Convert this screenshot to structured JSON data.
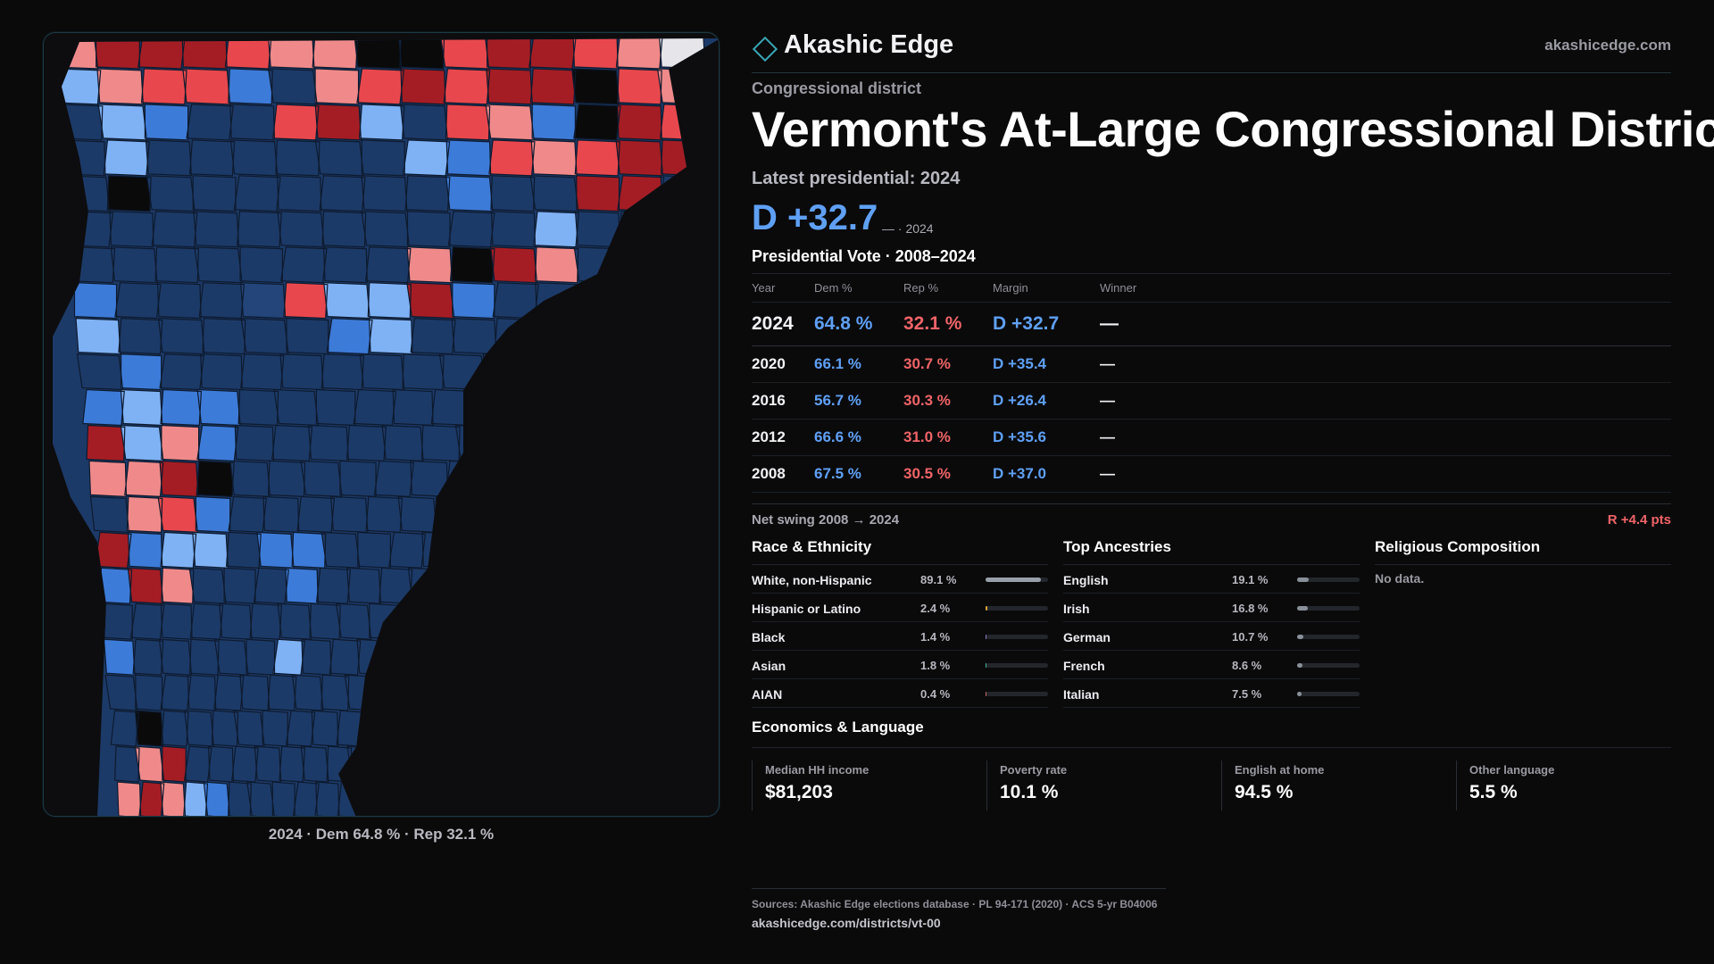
{
  "brand": {
    "name": "Akashic Edge",
    "url": "akashicedge.com"
  },
  "colors": {
    "dem": "#5fa0f5",
    "rep": "#f06468",
    "accent": "#3aa7b5",
    "background": "#0a0a0b"
  },
  "district": {
    "kicker": "Congressional district",
    "title": "Vermont's At-Large Congressional District",
    "latest_label": "Latest presidential: 2024",
    "latest_margin": "D +32.7",
    "latest_margin_sub": "— · 2024"
  },
  "map": {
    "caption": "2024 · Dem 64.8 % · Rep 32.1 %"
  },
  "vote_table": {
    "heading": "Presidential Vote · 2008–2024",
    "columns": [
      "Year",
      "Dem %",
      "Rep %",
      "Margin",
      "Winner"
    ],
    "rows": [
      {
        "year": "2024",
        "dem": "64.8 %",
        "rep": "32.1 %",
        "margin": "D +32.7",
        "winner": "—"
      },
      {
        "year": "2020",
        "dem": "66.1 %",
        "rep": "30.7 %",
        "margin": "D +35.4",
        "winner": "—"
      },
      {
        "year": "2016",
        "dem": "56.7 %",
        "rep": "30.3 %",
        "margin": "D +26.4",
        "winner": "—"
      },
      {
        "year": "2012",
        "dem": "66.6 %",
        "rep": "31.0 %",
        "margin": "D +35.6",
        "winner": "—"
      },
      {
        "year": "2008",
        "dem": "67.5 %",
        "rep": "30.5 %",
        "margin": "D +37.0",
        "winner": "—"
      }
    ],
    "swing_label": "Net swing 2008 → 2024",
    "swing_value": "R +4.4 pts"
  },
  "race": {
    "heading": "Race & Ethnicity",
    "items": [
      {
        "label": "White, non-Hispanic",
        "pct": "89.1 %",
        "value": 89.1,
        "color": "#9aa0aa"
      },
      {
        "label": "Hispanic or Latino",
        "pct": "2.4 %",
        "value": 2.4,
        "color": "#d8a23a"
      },
      {
        "label": "Black",
        "pct": "1.4 %",
        "value": 1.4,
        "color": "#8f7ad0"
      },
      {
        "label": "Asian",
        "pct": "1.8 %",
        "value": 1.8,
        "color": "#3fb59a"
      },
      {
        "label": "AIAN",
        "pct": "0.4 %",
        "value": 0.4,
        "color": "#c26b5a"
      }
    ]
  },
  "ancestries": {
    "heading": "Top Ancestries",
    "items": [
      {
        "label": "English",
        "pct": "19.1 %",
        "value": 19.1
      },
      {
        "label": "Irish",
        "pct": "16.8 %",
        "value": 16.8
      },
      {
        "label": "German",
        "pct": "10.7 %",
        "value": 10.7
      },
      {
        "label": "French",
        "pct": "8.6 %",
        "value": 8.6
      },
      {
        "label": "Italian",
        "pct": "7.5 %",
        "value": 7.5
      }
    ]
  },
  "religion": {
    "heading": "Religious Composition",
    "empty": "No data."
  },
  "economics": {
    "heading": "Economics & Language",
    "cells": [
      {
        "label": "Median HH income",
        "value": "$81,203"
      },
      {
        "label": "Poverty rate",
        "value": "10.1 %"
      },
      {
        "label": "English at home",
        "value": "94.5 %"
      },
      {
        "label": "Other language",
        "value": "5.5 %"
      }
    ]
  },
  "footer": {
    "sources": "Sources: Akashic Edge elections database · PL 94-171 (2020) · ACS 5-yr B04006",
    "url": "akashicedge.com/districts/vt-00"
  }
}
